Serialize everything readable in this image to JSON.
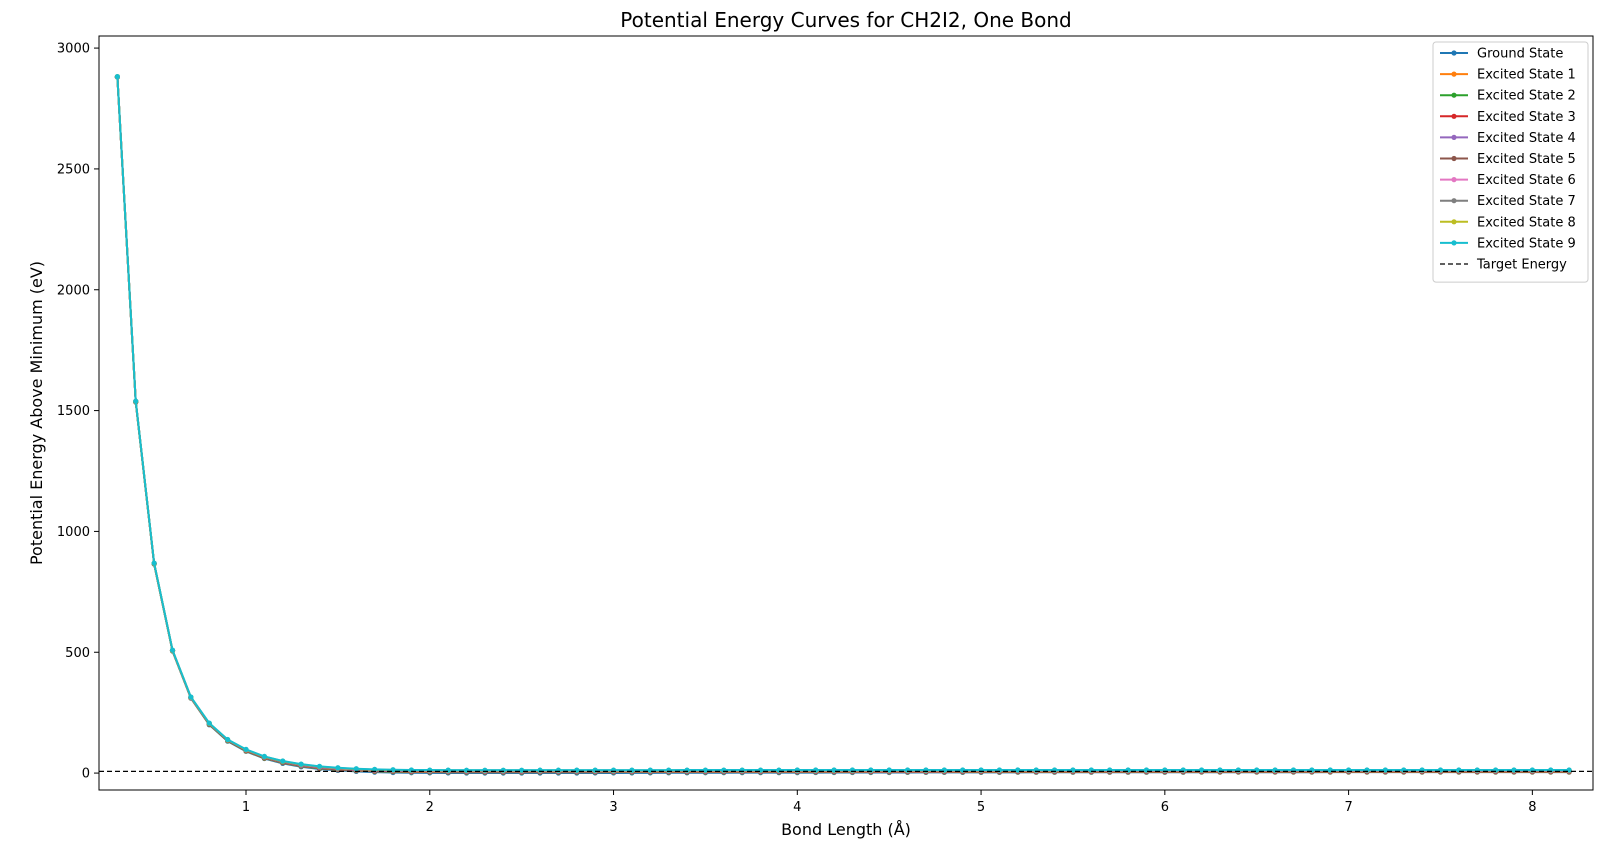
{
  "chart_data": {
    "type": "line",
    "title": "Potential Energy Curves for CH2I2, One Bond",
    "xlabel": "Bond Length (Å)",
    "ylabel": "Potential Energy Above Minimum (eV)",
    "xlim": [
      0.2,
      8.33
    ],
    "ylim": [
      -70,
      3050
    ],
    "xticks": [
      1,
      2,
      3,
      4,
      5,
      6,
      7,
      8
    ],
    "yticks": [
      0,
      500,
      1000,
      1500,
      2000,
      2500,
      3000
    ],
    "legend_position": "top-right",
    "grid": false,
    "x": [
      0.3,
      0.4,
      0.5,
      0.6,
      0.7,
      0.8,
      0.9,
      1.0,
      1.1,
      1.2,
      1.3,
      1.4,
      1.5,
      1.6,
      1.7,
      1.8,
      1.9,
      2.0,
      2.1,
      2.2,
      2.3,
      2.4,
      2.5,
      2.6,
      2.7,
      2.8,
      2.9,
      3.0,
      3.1,
      3.2,
      3.3,
      3.4,
      3.5,
      3.6,
      3.7,
      3.8,
      3.9,
      4.0,
      4.1,
      4.2,
      4.3,
      4.4,
      4.5,
      4.6,
      4.7,
      4.8,
      4.9,
      5.0,
      5.1,
      5.2,
      5.3,
      5.4,
      5.5,
      5.6,
      5.7,
      5.8,
      5.9,
      6.0,
      6.1,
      6.2,
      6.3,
      6.4,
      6.5,
      6.6,
      6.7,
      6.8,
      6.9,
      7.0,
      7.1,
      7.2,
      7.3,
      7.4,
      7.5,
      7.6,
      7.7,
      7.8,
      7.9,
      8.0,
      8.1,
      8.2
    ],
    "series": [
      {
        "name": "Ground State",
        "color": "#1f77b4",
        "values": [
          2880,
          1535,
          865,
          505,
          310,
          200,
          132,
          90,
          60,
          40,
          26,
          17,
          11,
          7,
          4,
          2.5,
          1.5,
          1,
          0.6,
          0.4,
          0.3,
          0.2,
          0.1,
          0.1,
          0.2,
          0.3,
          0.5,
          0.6,
          0.8,
          1,
          1.2,
          1.3,
          1.5,
          1.6,
          1.7,
          1.8,
          1.9,
          2,
          2.1,
          2.2,
          2.3,
          2.4,
          2.5,
          2.6,
          2.7,
          2.8,
          2.9,
          3,
          3,
          3.1,
          3.2,
          3.2,
          3.3,
          3.3,
          3.4,
          3.4,
          3.5,
          3.5,
          3.5,
          3.6,
          3.6,
          3.6,
          3.7,
          3.7,
          3.7,
          3.7,
          3.8,
          3.8,
          3.8,
          3.8,
          3.8,
          3.9,
          3.9,
          3.9,
          3.9,
          3.9,
          3.9,
          4,
          4,
          4
        ]
      },
      {
        "name": "Excited State 1",
        "color": "#ff7f0e",
        "values": [
          2880,
          1536,
          866,
          506,
          311,
          202,
          134,
          92,
          62,
          43,
          29,
          20,
          14,
          10,
          7.5,
          6,
          5,
          4.5,
          4.2,
          4,
          4,
          4,
          4,
          4.1,
          4.1,
          4.2,
          4.2,
          4.3,
          4.3,
          4.4,
          4.4,
          4.5,
          4.5,
          4.5,
          4.6,
          4.6,
          4.6,
          4.7,
          4.7,
          4.7,
          4.7,
          4.8,
          4.8,
          4.8,
          4.8,
          4.8,
          4.9,
          4.9,
          4.9,
          4.9,
          4.9,
          4.9,
          5,
          5,
          5,
          5,
          5,
          5,
          5,
          5,
          5,
          5,
          5,
          5,
          5,
          5,
          5,
          5,
          5,
          5,
          5,
          5,
          5,
          5,
          5,
          5,
          5,
          5,
          5,
          5
        ]
      },
      {
        "name": "Excited State 2",
        "color": "#2ca02c",
        "values": [
          2880,
          1536,
          866,
          506,
          311,
          202,
          134,
          93,
          63,
          44,
          30,
          21,
          15,
          11,
          8.5,
          7,
          6,
          5.5,
          5.2,
          5,
          5,
          5,
          5,
          5.1,
          5.1,
          5.2,
          5.2,
          5.3,
          5.3,
          5.4,
          5.4,
          5.5,
          5.5,
          5.5,
          5.6,
          5.6,
          5.6,
          5.7,
          5.7,
          5.7,
          5.7,
          5.8,
          5.8,
          5.8,
          5.8,
          5.8,
          5.9,
          5.9,
          5.9,
          5.9,
          5.9,
          5.9,
          6,
          6,
          6,
          6,
          6,
          6,
          6,
          6,
          6,
          6,
          6,
          6,
          6,
          6,
          6,
          6,
          6,
          6,
          6,
          6,
          6,
          6,
          6,
          6,
          6,
          6,
          6,
          6
        ]
      },
      {
        "name": "Excited State 3",
        "color": "#d62728",
        "values": [
          2881,
          1537,
          867,
          507,
          312,
          203,
          135,
          94,
          64,
          45,
          31,
          22,
          16,
          12,
          9.5,
          8,
          7,
          6.5,
          6.2,
          6,
          6,
          6,
          6,
          6.1,
          6.1,
          6.2,
          6.2,
          6.3,
          6.3,
          6.4,
          6.4,
          6.5,
          6.5,
          6.5,
          6.6,
          6.6,
          6.6,
          6.7,
          6.7,
          6.7,
          6.7,
          6.8,
          6.8,
          6.8,
          6.8,
          6.8,
          6.9,
          6.9,
          6.9,
          6.9,
          6.9,
          6.9,
          7,
          7,
          7,
          7,
          7,
          7,
          7,
          7,
          7,
          7,
          7,
          7,
          7,
          7,
          7,
          7,
          7,
          7,
          7,
          7,
          7,
          7,
          7,
          7,
          7,
          7,
          7,
          7
        ]
      },
      {
        "name": "Excited State 4",
        "color": "#9467bd",
        "values": [
          2881,
          1537,
          867,
          507,
          312,
          204,
          136,
          95,
          65,
          46,
          32,
          23,
          17,
          13,
          10.5,
          9,
          8,
          7.5,
          7.2,
          7,
          7,
          7,
          7,
          7.1,
          7.1,
          7.2,
          7.2,
          7.3,
          7.3,
          7.4,
          7.4,
          7.5,
          7.5,
          7.5,
          7.6,
          7.6,
          7.6,
          7.7,
          7.7,
          7.7,
          7.7,
          7.8,
          7.8,
          7.8,
          7.8,
          7.8,
          7.9,
          7.9,
          7.9,
          7.9,
          7.9,
          7.9,
          8,
          8,
          8,
          8,
          8,
          8,
          8,
          8,
          8,
          8,
          8,
          8,
          8,
          8,
          8,
          8,
          8,
          8,
          8,
          8,
          8,
          8,
          8,
          8,
          8,
          8,
          8,
          8
        ]
      },
      {
        "name": "Excited State 5",
        "color": "#8c564b",
        "values": [
          2881,
          1537,
          867,
          507,
          313,
          204,
          136,
          95,
          66,
          47,
          33,
          24,
          18,
          14,
          11.5,
          10,
          9,
          8.5,
          8.2,
          8,
          8,
          8,
          8,
          8.1,
          8.1,
          8.2,
          8.2,
          8.3,
          8.3,
          8.4,
          8.4,
          8.5,
          8.5,
          8.5,
          8.6,
          8.6,
          8.6,
          8.7,
          8.7,
          8.7,
          8.7,
          8.8,
          8.8,
          8.8,
          8.8,
          8.8,
          8.9,
          8.9,
          8.9,
          8.9,
          8.9,
          8.9,
          9,
          9,
          9,
          9,
          9,
          9,
          9,
          9,
          9,
          9,
          9,
          9,
          9,
          9,
          9,
          9,
          9,
          9,
          9,
          9,
          9,
          9,
          9,
          9,
          9,
          9,
          9,
          9
        ]
      },
      {
        "name": "Excited State 6",
        "color": "#e377c2",
        "values": [
          2881,
          1538,
          868,
          508,
          313,
          205,
          137,
          96,
          67,
          48,
          34,
          25,
          19,
          15,
          12.5,
          11,
          10,
          9.5,
          9.2,
          9,
          9,
          9,
          9,
          9.1,
          9.1,
          9.2,
          9.2,
          9.3,
          9.3,
          9.4,
          9.4,
          9.5,
          9.5,
          9.5,
          9.6,
          9.6,
          9.6,
          9.7,
          9.7,
          9.7,
          9.7,
          9.8,
          9.8,
          9.8,
          9.8,
          9.8,
          9.9,
          9.9,
          9.9,
          9.9,
          9.9,
          9.9,
          10,
          10,
          10,
          10,
          10,
          10,
          10,
          10,
          10,
          10,
          10,
          10,
          10,
          10,
          10,
          10,
          10,
          10,
          10,
          10,
          10,
          10,
          10,
          10,
          10,
          10,
          10,
          10
        ]
      },
      {
        "name": "Excited State 7",
        "color": "#7f7f7f",
        "values": [
          2881,
          1538,
          868,
          508,
          314,
          205,
          137,
          97,
          67,
          48,
          35,
          26,
          20,
          16,
          13.5,
          12,
          11,
          10.5,
          10.2,
          10,
          10,
          10,
          10,
          10.1,
          10.1,
          10.2,
          10.2,
          10.3,
          10.3,
          10.4,
          10.4,
          10.5,
          10.5,
          10.5,
          10.6,
          10.6,
          10.6,
          10.7,
          10.7,
          10.7,
          10.7,
          10.8,
          10.8,
          10.8,
          10.8,
          10.8,
          10.9,
          10.9,
          10.9,
          10.9,
          10.9,
          10.9,
          11,
          11,
          11,
          11,
          11,
          11,
          11,
          11,
          11,
          11,
          11,
          11,
          11,
          11,
          11,
          11,
          11,
          11,
          11,
          11,
          11,
          11,
          11,
          11,
          11,
          11,
          11,
          11
        ]
      },
      {
        "name": "Excited State 8",
        "color": "#bcbd22",
        "values": [
          2882,
          1538,
          868,
          508,
          314,
          206,
          138,
          97,
          68,
          49,
          36,
          27,
          21,
          17,
          14.5,
          13,
          12,
          11.5,
          11.2,
          11,
          11,
          11,
          11,
          11.1,
          11.1,
          11.2,
          11.2,
          11.3,
          11.3,
          11.4,
          11.4,
          11.5,
          11.5,
          11.5,
          11.6,
          11.6,
          11.6,
          11.7,
          11.7,
          11.7,
          11.7,
          11.8,
          11.8,
          11.8,
          11.8,
          11.8,
          11.9,
          11.9,
          11.9,
          11.9,
          11.9,
          11.9,
          12,
          12,
          12,
          12,
          12,
          12,
          12,
          12,
          12,
          12,
          12,
          12,
          12,
          12,
          12,
          12,
          12,
          12,
          12,
          12,
          12,
          12,
          12,
          12,
          12,
          12,
          12,
          12
        ]
      },
      {
        "name": "Excited State 9",
        "color": "#17becf",
        "values": [
          2882,
          1539,
          869,
          509,
          315,
          207,
          139,
          98,
          69,
          50,
          37,
          28,
          22,
          18,
          15.5,
          14,
          13,
          12.5,
          12.2,
          12,
          12,
          12,
          12,
          12.1,
          12.1,
          12.2,
          12.2,
          12.3,
          12.3,
          12.4,
          12.4,
          12.5,
          12.5,
          12.5,
          12.6,
          12.6,
          12.6,
          12.7,
          12.7,
          12.7,
          12.7,
          12.8,
          12.8,
          12.8,
          12.8,
          12.8,
          12.9,
          12.9,
          12.9,
          12.9,
          12.9,
          12.9,
          13,
          13,
          13,
          13,
          13,
          13,
          13,
          13,
          13,
          13,
          13,
          13,
          13,
          13,
          13,
          13,
          13,
          13,
          13,
          13,
          13,
          13,
          13,
          13,
          13,
          13,
          13,
          13
        ]
      }
    ],
    "reference_lines": [
      {
        "name": "Target Energy",
        "y": 7,
        "color": "#000000",
        "style": "dashed"
      }
    ]
  }
}
